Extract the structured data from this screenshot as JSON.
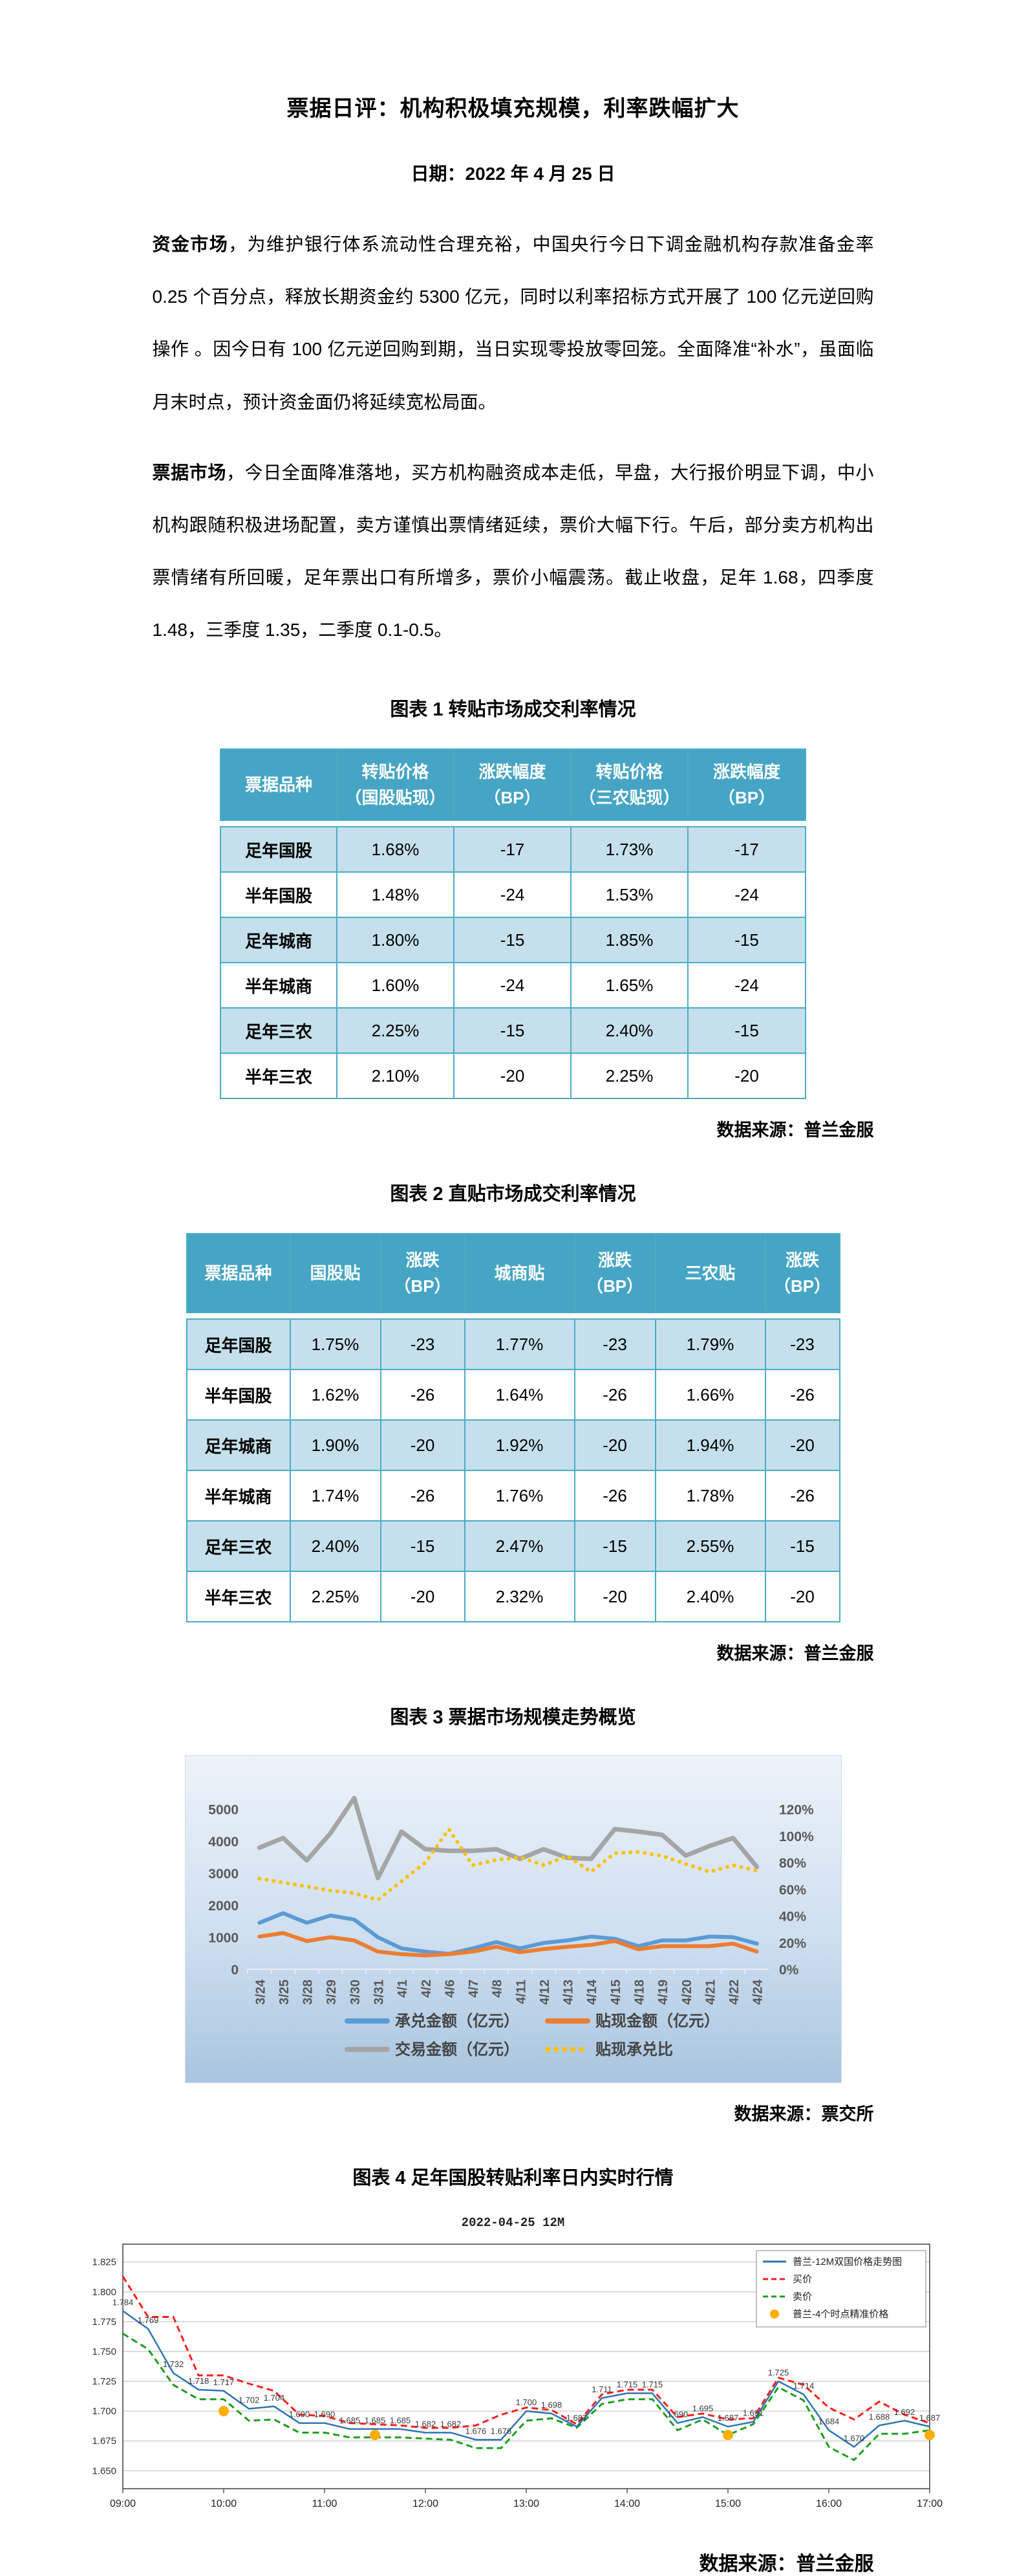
{
  "doc": {
    "title": "票据日评：机构积极填充规模，利率跌幅扩大",
    "date": "日期：2022 年 4 月 25 日"
  },
  "paragraphs": [
    {
      "lead": "资金市场",
      "text": "，为维护银行体系流动性合理充裕，中国央行今日下调金融机构存款准备金率 0.25 个百分点，释放长期资金约 5300 亿元，同时以利率招标方式开展了 100 亿元逆回购操作 。因今日有 100 亿元逆回购到期，当日实现零投放零回笼。全面降准“补水”，虽面临月末时点，预计资金面仍将延续宽松局面。"
    },
    {
      "lead": "票据市场",
      "text": "，今日全面降准落地，买方机构融资成本走低，早盘，大行报价明显下调，中小机构跟随积极进场配置，卖方谨慎出票情绪延续，票价大幅下行。午后，部分卖方机构出票情绪有所回暖，足年票出口有所增多，票价小幅震荡。截止收盘，足年 1.68，四季度 1.48，三季度 1.35，二季度 0.1-0.5。"
    }
  ],
  "figures": [
    {
      "caption": "图表 1 转贴市场成交利率情况",
      "source": "数据来源：普兰金服"
    },
    {
      "caption": "图表 2 直贴市场成交利率情况",
      "source": "数据来源：普兰金服"
    },
    {
      "caption": "图表 3 票据市场规模走势概览",
      "source": "数据来源：票交所"
    },
    {
      "caption": "图表 4 足年国股转贴利率日内实时行情",
      "source": "数据来源：普兰金服"
    }
  ],
  "theme": {
    "table_header_bg": "#46A5C5",
    "table_row_alt_bg": "#C5E0EC",
    "table_border": "#4BACC6",
    "axis_text": "#595959"
  },
  "tables": [
    {
      "headers": [
        [
          "票据品种"
        ],
        [
          "转贴价格",
          "（国股贴现）"
        ],
        [
          "涨跌幅度",
          "（BP）"
        ],
        [
          "转贴价格",
          "（三农贴现）"
        ],
        [
          "涨跌幅度",
          "（BP）"
        ]
      ],
      "rows": [
        [
          "足年国股",
          "1.68%",
          "-17",
          "1.73%",
          "-17"
        ],
        [
          "半年国股",
          "1.48%",
          "-24",
          "1.53%",
          "-24"
        ],
        [
          "足年城商",
          "1.80%",
          "-15",
          "1.85%",
          "-15"
        ],
        [
          "半年城商",
          "1.60%",
          "-24",
          "1.65%",
          "-24"
        ],
        [
          "足年三农",
          "2.25%",
          "-15",
          "2.40%",
          "-15"
        ],
        [
          "半年三农",
          "2.10%",
          "-20",
          "2.25%",
          "-20"
        ]
      ]
    },
    {
      "headers": [
        [
          "票据品种"
        ],
        [
          "国股贴"
        ],
        [
          "涨跌",
          "（BP）"
        ],
        [
          "城商贴"
        ],
        [
          "涨跌",
          "（BP）"
        ],
        [
          "三农贴"
        ],
        [
          "涨跌",
          "（BP）"
        ]
      ],
      "rows": [
        [
          "足年国股",
          "1.75%",
          "-23",
          "1.77%",
          "-23",
          "1.79%",
          "-23"
        ],
        [
          "半年国股",
          "1.62%",
          "-26",
          "1.64%",
          "-26",
          "1.66%",
          "-26"
        ],
        [
          "足年城商",
          "1.90%",
          "-20",
          "1.92%",
          "-20",
          "1.94%",
          "-20"
        ],
        [
          "半年城商",
          "1.74%",
          "-26",
          "1.76%",
          "-26",
          "1.78%",
          "-26"
        ],
        [
          "足年三农",
          "2.40%",
          "-15",
          "2.47%",
          "-15",
          "2.55%",
          "-15"
        ],
        [
          "半年三农",
          "2.25%",
          "-20",
          "2.32%",
          "-20",
          "2.40%",
          "-20"
        ]
      ]
    }
  ],
  "chart_data": [
    {
      "type": "line",
      "title": "票据市场规模走势概览",
      "categories": [
        "3/24",
        "3/25",
        "3/28",
        "3/29",
        "3/30",
        "3/31",
        "4/1",
        "4/2",
        "4/6",
        "4/7",
        "4/8",
        "4/11",
        "4/12",
        "4/13",
        "4/14",
        "4/15",
        "4/18",
        "4/19",
        "4/20",
        "4/21",
        "4/22",
        "4/24"
      ],
      "series": [
        {
          "name": "承兑金额（亿元）",
          "axis": "left",
          "style": "solid",
          "color": "#5B9BD5",
          "width": 6,
          "values": [
            1450,
            1750,
            1450,
            1680,
            1550,
            1000,
            650,
            550,
            480,
            650,
            850,
            650,
            820,
            900,
            1020,
            950,
            720,
            900,
            900,
            1020,
            1000,
            800
          ]
        },
        {
          "name": "贴现金额（亿元）",
          "axis": "left",
          "style": "solid",
          "color": "#ED7D31",
          "width": 6,
          "values": [
            1020,
            1130,
            880,
            1000,
            900,
            550,
            470,
            430,
            470,
            550,
            700,
            530,
            630,
            700,
            760,
            880,
            620,
            720,
            720,
            720,
            800,
            550
          ]
        },
        {
          "name": "交易金额（亿元）",
          "axis": "left",
          "style": "solid",
          "color": "#A5A5A5",
          "width": 7,
          "values": [
            3800,
            4100,
            3400,
            4250,
            5350,
            2850,
            4300,
            3750,
            3700,
            3700,
            3750,
            3450,
            3750,
            3480,
            3450,
            4380,
            4300,
            4200,
            3550,
            3850,
            4100,
            3200
          ]
        },
        {
          "name": "贴现承兑比",
          "axis": "right",
          "style": "dotted",
          "color": "#FFC000",
          "width": 6,
          "values": [
            68,
            65,
            62,
            59,
            57,
            52,
            66,
            80,
            105,
            78,
            82,
            84,
            78,
            85,
            73,
            87,
            88,
            85,
            79,
            73,
            78,
            74
          ]
        }
      ],
      "left_axis": {
        "ticks": [
          0,
          1000,
          2000,
          3000,
          4000,
          5000
        ],
        "max": 5500
      },
      "right_axis": {
        "ticks": [
          "0%",
          "20%",
          "40%",
          "60%",
          "80%",
          "100%",
          "120%"
        ],
        "tick_values": [
          0,
          20,
          40,
          60,
          80,
          100,
          120
        ],
        "max": 132
      },
      "legend_position": "bottom",
      "grid": false
    },
    {
      "type": "line",
      "title": "2022-04-25 12M",
      "x": [
        "09:00",
        "09:15",
        "09:30",
        "09:45",
        "10:00",
        "10:15",
        "10:30",
        "10:45",
        "11:00",
        "11:15",
        "11:30",
        "11:45",
        "12:00",
        "12:15",
        "12:30",
        "12:45",
        "13:00",
        "13:15",
        "13:30",
        "13:45",
        "14:00",
        "14:15",
        "14:30",
        "14:45",
        "15:00",
        "15:15",
        "15:30",
        "15:45",
        "16:00",
        "16:15",
        "16:30",
        "16:45",
        "17:00"
      ],
      "series": [
        {
          "name": "普兰-12M双国价格走势图",
          "style": "solid",
          "color": "#2E75B6",
          "width": 2.5,
          "labels": true,
          "values": [
            1.784,
            1.769,
            1.732,
            1.718,
            1.717,
            1.702,
            1.704,
            1.69,
            1.69,
            1.685,
            1.685,
            1.685,
            1.682,
            1.682,
            1.676,
            1.676,
            1.7,
            1.698,
            1.687,
            1.711,
            1.715,
            1.715,
            1.69,
            1.695,
            1.687,
            1.691,
            1.725,
            1.714,
            1.684,
            1.67,
            1.688,
            1.692,
            1.687
          ]
        },
        {
          "name": "买价",
          "style": "dashed",
          "color": "#FF1F1F",
          "width": 3,
          "labels": false,
          "values": [
            1.813,
            1.779,
            1.779,
            1.73,
            1.73,
            1.723,
            1.717,
            1.697,
            1.696,
            1.69,
            1.689,
            1.688,
            1.686,
            1.686,
            1.688,
            1.697,
            1.703,
            1.701,
            1.689,
            1.714,
            1.718,
            1.718,
            1.695,
            1.698,
            1.693,
            1.694,
            1.728,
            1.722,
            1.703,
            1.693,
            1.708,
            1.697,
            1.69
          ]
        },
        {
          "name": "卖价",
          "style": "dashed",
          "color": "#1E9E1E",
          "width": 3,
          "labels": false,
          "values": [
            1.765,
            1.752,
            1.722,
            1.71,
            1.71,
            1.692,
            1.693,
            1.682,
            1.682,
            1.678,
            1.678,
            1.678,
            1.677,
            1.676,
            1.669,
            1.669,
            1.692,
            1.694,
            1.686,
            1.706,
            1.71,
            1.71,
            1.684,
            1.693,
            1.68,
            1.689,
            1.72,
            1.709,
            1.67,
            1.659,
            1.681,
            1.681,
            1.684
          ]
        }
      ],
      "points": {
        "name": "普兰-4个时点精准价格",
        "color": "#FFAE00",
        "data": [
          {
            "x": "10:00",
            "y": 1.7
          },
          {
            "x": "11:30",
            "y": 1.68
          },
          {
            "x": "15:00",
            "y": 1.68
          },
          {
            "x": "17:00",
            "y": 1.68
          }
        ]
      },
      "ylim": [
        1.635,
        1.84
      ],
      "yticks": [
        "1.650",
        "1.675",
        "1.700",
        "1.725",
        "1.750",
        "1.775",
        "1.800",
        "1.825"
      ],
      "xticks": [
        "09:00",
        "10:00",
        "11:00",
        "12:00",
        "13:00",
        "14:00",
        "15:00",
        "16:00",
        "17:00"
      ],
      "legend_position": "top-right",
      "grid": true
    }
  ]
}
